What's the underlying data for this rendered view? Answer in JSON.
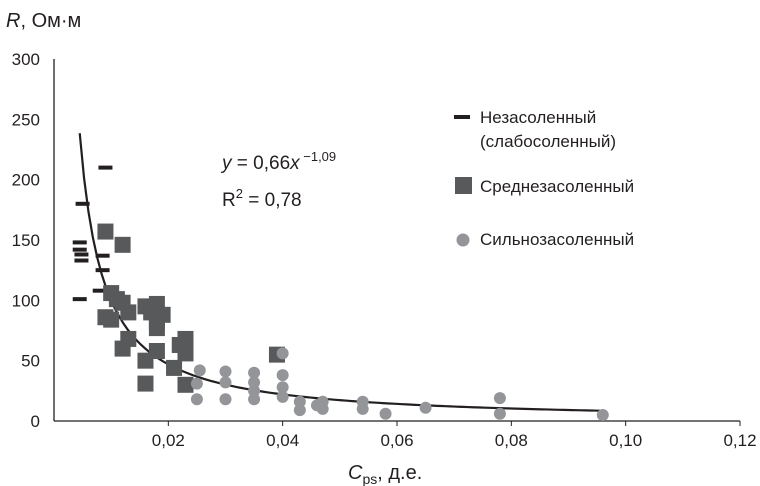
{
  "chart_data": {
    "type": "scatter",
    "title": "",
    "ylabel": "R, Ом·м",
    "ylabel_parts": {
      "var": "R",
      "unit": ", Ом·м"
    },
    "xlabel": "Cps, д.е.",
    "xlabel_parts": {
      "var": "C",
      "sub": "ps",
      "unit": ", д.е."
    },
    "xlim": [
      0,
      0.12
    ],
    "ylim": [
      0,
      300
    ],
    "x_ticks": [
      {
        "value": 0.02,
        "label": "0,02"
      },
      {
        "value": 0.04,
        "label": "0,04"
      },
      {
        "value": 0.06,
        "label": "0,06"
      },
      {
        "value": 0.08,
        "label": "0,08"
      },
      {
        "value": 0.1,
        "label": "0,10"
      },
      {
        "value": 0.12,
        "label": "0,12"
      }
    ],
    "y_ticks": [
      {
        "value": 0,
        "label": "0"
      },
      {
        "value": 50,
        "label": "50"
      },
      {
        "value": 100,
        "label": "100"
      },
      {
        "value": 150,
        "label": "150"
      },
      {
        "value": 200,
        "label": "200"
      },
      {
        "value": 250,
        "label": "250"
      },
      {
        "value": 300,
        "label": "300"
      }
    ],
    "grid": false,
    "legend_position": "right",
    "series": [
      {
        "name": "Незасоленный",
        "name_line2": "(слабосоленный)",
        "marker": "dash",
        "color": "#231f20",
        "points": [
          [
            0.0045,
            148
          ],
          [
            0.0045,
            142
          ],
          [
            0.0048,
            138
          ],
          [
            0.0048,
            133
          ],
          [
            0.0045,
            101
          ],
          [
            0.005,
            180
          ],
          [
            0.008,
            108
          ],
          [
            0.0085,
            125
          ],
          [
            0.0085,
            137
          ],
          [
            0.009,
            210
          ]
        ]
      },
      {
        "name": "Среднезасоленный",
        "marker": "square",
        "color": "#58595b",
        "points": [
          [
            0.009,
            157
          ],
          [
            0.012,
            146
          ],
          [
            0.009,
            86
          ],
          [
            0.01,
            106
          ],
          [
            0.01,
            84
          ],
          [
            0.011,
            101
          ],
          [
            0.012,
            98
          ],
          [
            0.013,
            90
          ],
          [
            0.013,
            68
          ],
          [
            0.012,
            60
          ],
          [
            0.016,
            95
          ],
          [
            0.017,
            90
          ],
          [
            0.018,
            97
          ],
          [
            0.019,
            88
          ],
          [
            0.018,
            82
          ],
          [
            0.018,
            77
          ],
          [
            0.016,
            50
          ],
          [
            0.016,
            31
          ],
          [
            0.018,
            58
          ],
          [
            0.022,
            63
          ],
          [
            0.023,
            68
          ],
          [
            0.023,
            56
          ],
          [
            0.021,
            44
          ],
          [
            0.023,
            30
          ],
          [
            0.039,
            55
          ]
        ]
      },
      {
        "name": "Сильнозасоленный",
        "marker": "circle",
        "color": "#939598",
        "points": [
          [
            0.0255,
            42
          ],
          [
            0.025,
            31
          ],
          [
            0.025,
            18
          ],
          [
            0.03,
            41
          ],
          [
            0.03,
            32
          ],
          [
            0.03,
            18
          ],
          [
            0.035,
            40
          ],
          [
            0.035,
            32
          ],
          [
            0.035,
            25
          ],
          [
            0.035,
            18
          ],
          [
            0.04,
            56
          ],
          [
            0.04,
            38
          ],
          [
            0.04,
            28
          ],
          [
            0.04,
            20
          ],
          [
            0.043,
            16
          ],
          [
            0.043,
            9
          ],
          [
            0.046,
            13
          ],
          [
            0.047,
            16
          ],
          [
            0.047,
            10
          ],
          [
            0.054,
            16
          ],
          [
            0.054,
            10
          ],
          [
            0.058,
            6
          ],
          [
            0.065,
            11
          ],
          [
            0.078,
            19
          ],
          [
            0.078,
            6
          ],
          [
            0.096,
            5
          ]
        ]
      }
    ],
    "trendline": {
      "equation": "y = 0,66x^-1,09",
      "a": 0.66,
      "b": -1.09,
      "x_range": [
        0.0045,
        0.096
      ],
      "r2": "R2 = 0,78"
    }
  },
  "equation_label": {
    "y": "y",
    "eq": " = 0,66",
    "x": "x",
    "exp": " −1,09"
  },
  "r2_label": {
    "R": "R",
    "sup": "2",
    "rest": " = 0,78"
  }
}
